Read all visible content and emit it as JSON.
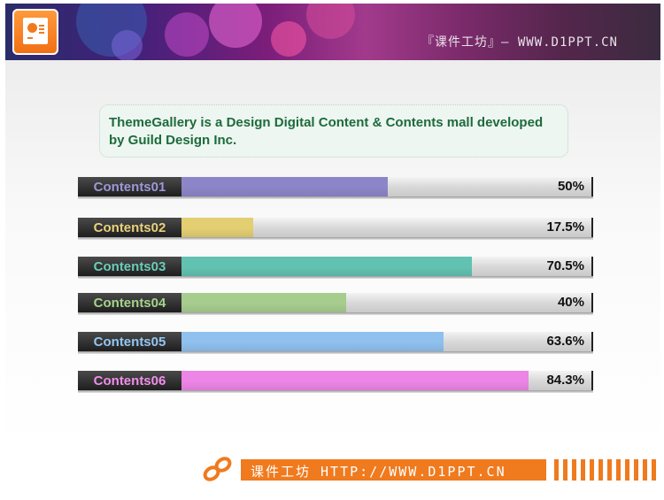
{
  "header": {
    "site_text": "『课件工坊』— WWW.D1PPT.CN"
  },
  "callout": {
    "text": "ThemeGallery is a Design Digital Content & Contents mall developed by Guild Design Inc."
  },
  "bars": [
    {
      "label": "Contents01",
      "value": 50,
      "value_text": "50%",
      "color": "#8c86c9",
      "label_color": "#9d97d8"
    },
    {
      "label": "Contents02",
      "value": 17.5,
      "value_text": "17.5%",
      "color": "#e3ce72",
      "label_color": "#e9d27a"
    },
    {
      "label": "Contents03",
      "value": 70.5,
      "value_text": "70.5%",
      "color": "#62c2b1",
      "label_color": "#69cdb9"
    },
    {
      "label": "Contents04",
      "value": 40,
      "value_text": "40%",
      "color": "#a6cc8e",
      "label_color": "#a7d38c"
    },
    {
      "label": "Contents05",
      "value": 63.6,
      "value_text": "63.6%",
      "color": "#8fc0ee",
      "label_color": "#93c6f3"
    },
    {
      "label": "Contents06",
      "value": 84.3,
      "value_text": "84.3%",
      "color": "#ec85e6",
      "label_color": "#f08ee9"
    }
  ],
  "footer": {
    "text": "课件工坊 HTTP://WWW.D1PPT.CN",
    "accent": "#f07a1e"
  }
}
